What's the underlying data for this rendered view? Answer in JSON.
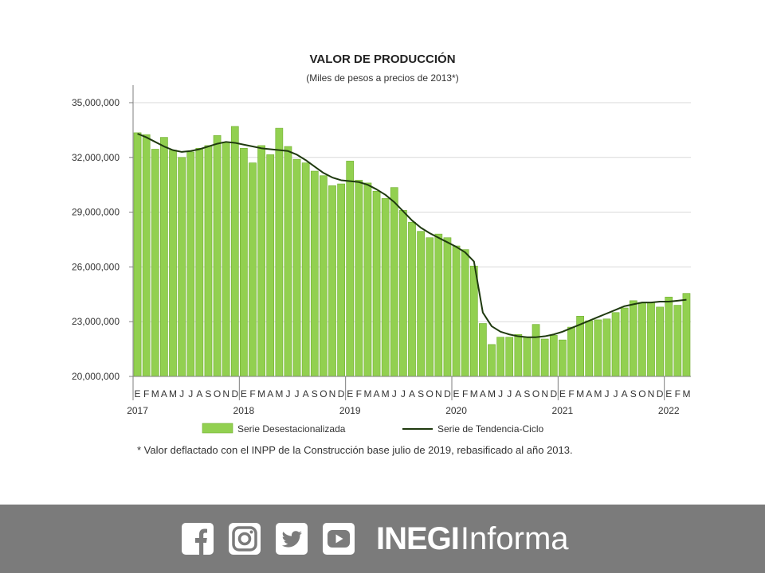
{
  "chart_data": {
    "type": "bar",
    "title": "VALOR DE PRODUCCIÓN",
    "subtitle": "(Miles de pesos a precios de 2013*)",
    "ylim": [
      20000000,
      35000000
    ],
    "yticks": [
      "35,000,000",
      "32,000,000",
      "29,000,000",
      "26,000,000",
      "23,000,000",
      "20,000,000"
    ],
    "ytick_values": [
      35000000,
      32000000,
      29000000,
      26000000,
      23000000,
      20000000
    ],
    "grid": true,
    "categories": [
      "E",
      "F",
      "M",
      "A",
      "M",
      "J",
      "J",
      "A",
      "S",
      "O",
      "N",
      "D",
      "E",
      "F",
      "M",
      "A",
      "M",
      "J",
      "J",
      "A",
      "S",
      "O",
      "N",
      "D",
      "E",
      "F",
      "M",
      "A",
      "M",
      "J",
      "J",
      "A",
      "S",
      "O",
      "N",
      "D",
      "E",
      "F",
      "M",
      "A",
      "M",
      "J",
      "J",
      "A",
      "S",
      "O",
      "N",
      "D",
      "E",
      "F",
      "M",
      "A",
      "M",
      "J",
      "J",
      "A",
      "S",
      "O",
      "N",
      "D",
      "E",
      "F",
      "M"
    ],
    "year_labels": [
      {
        "label": "2017",
        "index": 0
      },
      {
        "label": "2018",
        "index": 12
      },
      {
        "label": "2019",
        "index": 24
      },
      {
        "label": "2020",
        "index": 36
      },
      {
        "label": "2021",
        "index": 48
      },
      {
        "label": "2022",
        "index": 60
      }
    ],
    "series": [
      {
        "name": "Serie Desestacionalizada",
        "kind": "bar",
        "color": "#92d050",
        "values": [
          33350000,
          33250000,
          32450000,
          33100000,
          32400000,
          32000000,
          32300000,
          32500000,
          32650000,
          33200000,
          32850000,
          33700000,
          32500000,
          31700000,
          32650000,
          32150000,
          33600000,
          32600000,
          31900000,
          31700000,
          31250000,
          31000000,
          30450000,
          30550000,
          31800000,
          30750000,
          30600000,
          30150000,
          29750000,
          30350000,
          29100000,
          28450000,
          27950000,
          27600000,
          27800000,
          27600000,
          27150000,
          26950000,
          26050000,
          22900000,
          21750000,
          22150000,
          22150000,
          22300000,
          22150000,
          22850000,
          22050000,
          22250000,
          22000000,
          22700000,
          23300000,
          23050000,
          23100000,
          23150000,
          23500000,
          23750000,
          24150000,
          24050000,
          24050000,
          23800000,
          24350000,
          23900000,
          24550000
        ]
      },
      {
        "name": "Serie de Tendencia-Ciclo",
        "kind": "line",
        "color": "#1f3a0f",
        "values": [
          33300000,
          33100000,
          32850000,
          32600000,
          32400000,
          32300000,
          32350000,
          32450000,
          32600000,
          32750000,
          32850000,
          32800000,
          32700000,
          32600000,
          32500000,
          32450000,
          32400000,
          32350000,
          32150000,
          31850000,
          31500000,
          31150000,
          30900000,
          30750000,
          30700000,
          30650000,
          30500000,
          30250000,
          29950000,
          29550000,
          29050000,
          28550000,
          28150000,
          27850000,
          27600000,
          27350000,
          27100000,
          26800000,
          26300000,
          23500000,
          22750000,
          22450000,
          22300000,
          22200000,
          22150000,
          22150000,
          22200000,
          22300000,
          22450000,
          22650000,
          22850000,
          23050000,
          23250000,
          23450000,
          23650000,
          23850000,
          23950000,
          24050000,
          24050000,
          24100000,
          24100000,
          24150000,
          24200000
        ]
      }
    ],
    "legend_placement": "bottom"
  },
  "note": "* Valor deflactado con el INPP de la Construcción base julio de 2019, rebasificado al año 2013.",
  "footer": {
    "background": "#7b7b7b",
    "icons": [
      "facebook-icon",
      "instagram-icon",
      "twitter-icon",
      "youtube-icon"
    ],
    "brand_bold": "INEGI",
    "brand_light": "Informa"
  }
}
